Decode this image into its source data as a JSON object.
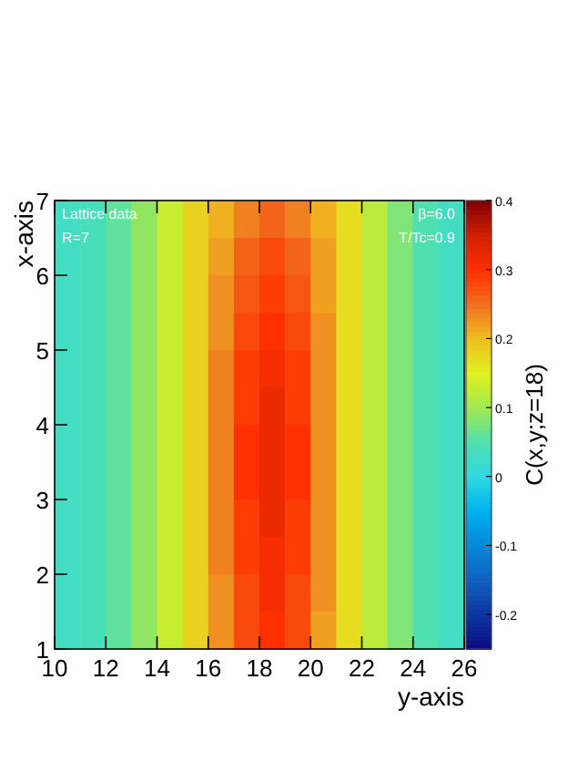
{
  "chart_data": {
    "type": "heatmap",
    "xlabel": "y-axis",
    "ylabel": "x-axis",
    "clabel": "C(x,y;z=18)",
    "annotations": [
      "Lattice data",
      "R=7",
      "β=6.0",
      "T/Tc=0.9"
    ],
    "xlim": [
      10,
      26
    ],
    "xticks": [
      10,
      12,
      14,
      16,
      18,
      20,
      22,
      24,
      26
    ],
    "ylim": [
      1,
      7
    ],
    "yticks": [
      1,
      2,
      3,
      4,
      5,
      6,
      7
    ],
    "clim": [
      -0.25,
      0.4
    ],
    "cticks": [
      -0.2,
      -0.1,
      0,
      0.1,
      0.2,
      0.3,
      0.4
    ],
    "cells": [
      [
        0.03,
        0.04,
        0.06,
        0.09,
        0.13,
        0.18,
        0.21,
        0.24,
        0.26,
        0.24,
        0.21,
        0.17,
        0.12,
        0.08,
        0.05,
        0.03
      ],
      [
        0.03,
        0.04,
        0.06,
        0.09,
        0.13,
        0.18,
        0.22,
        0.26,
        0.28,
        0.26,
        0.22,
        0.17,
        0.12,
        0.08,
        0.05,
        0.03
      ],
      [
        0.03,
        0.04,
        0.06,
        0.09,
        0.13,
        0.18,
        0.23,
        0.27,
        0.29,
        0.27,
        0.22,
        0.17,
        0.12,
        0.08,
        0.05,
        0.03
      ],
      [
        0.03,
        0.04,
        0.06,
        0.09,
        0.13,
        0.18,
        0.23,
        0.28,
        0.3,
        0.28,
        0.23,
        0.17,
        0.12,
        0.08,
        0.05,
        0.03
      ],
      [
        0.03,
        0.04,
        0.06,
        0.09,
        0.13,
        0.18,
        0.24,
        0.29,
        0.31,
        0.29,
        0.23,
        0.17,
        0.12,
        0.08,
        0.05,
        0.03
      ],
      [
        0.03,
        0.04,
        0.06,
        0.09,
        0.13,
        0.18,
        0.24,
        0.29,
        0.32,
        0.29,
        0.23,
        0.17,
        0.12,
        0.08,
        0.05,
        0.03
      ],
      [
        0.03,
        0.04,
        0.06,
        0.09,
        0.13,
        0.18,
        0.24,
        0.3,
        0.32,
        0.3,
        0.23,
        0.17,
        0.12,
        0.08,
        0.05,
        0.03
      ],
      [
        0.03,
        0.04,
        0.06,
        0.09,
        0.13,
        0.18,
        0.24,
        0.3,
        0.32,
        0.3,
        0.23,
        0.17,
        0.12,
        0.08,
        0.05,
        0.03
      ],
      [
        0.03,
        0.04,
        0.06,
        0.09,
        0.13,
        0.18,
        0.24,
        0.29,
        0.32,
        0.29,
        0.23,
        0.17,
        0.12,
        0.08,
        0.05,
        0.03
      ],
      [
        0.03,
        0.04,
        0.06,
        0.09,
        0.13,
        0.18,
        0.24,
        0.29,
        0.31,
        0.29,
        0.23,
        0.17,
        0.12,
        0.08,
        0.05,
        0.03
      ],
      [
        0.03,
        0.04,
        0.06,
        0.09,
        0.13,
        0.18,
        0.23,
        0.28,
        0.31,
        0.28,
        0.23,
        0.17,
        0.12,
        0.08,
        0.05,
        0.03
      ],
      [
        0.03,
        0.04,
        0.06,
        0.09,
        0.13,
        0.18,
        0.23,
        0.28,
        0.3,
        0.28,
        0.22,
        0.17,
        0.12,
        0.08,
        0.05,
        0.03
      ]
    ]
  }
}
